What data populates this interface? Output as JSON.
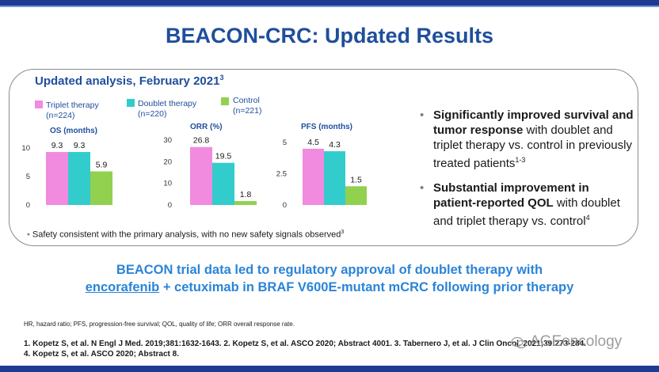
{
  "slide": {
    "title": "BEACON-CRC: Updated Results",
    "subtitle": "Updated analysis, February 2021",
    "subtitle_ref": "3"
  },
  "legend": [
    {
      "label": "Triplet therapy",
      "n": "(n=224)",
      "color": "#f08be0"
    },
    {
      "label": "Doublet therapy",
      "n": "(n=220)",
      "color": "#33cccc"
    },
    {
      "label": "Control",
      "n": "(n=221)",
      "color": "#92d050"
    }
  ],
  "chart_data": [
    {
      "type": "bar",
      "title": "OS (months)",
      "categories": [
        "Triplet therapy",
        "Doublet therapy",
        "Control"
      ],
      "values": [
        9.3,
        9.3,
        5.9
      ],
      "ylim": [
        0,
        10
      ],
      "yticks": [
        "0",
        "5",
        "10"
      ]
    },
    {
      "type": "bar",
      "title": "ORR (%)",
      "categories": [
        "Triplet therapy",
        "Doublet therapy",
        "Control"
      ],
      "values": [
        26.8,
        19.5,
        1.8
      ],
      "ylim": [
        0,
        30
      ],
      "yticks": [
        "0",
        "10",
        "20",
        "30"
      ]
    },
    {
      "type": "bar",
      "title": "PFS (months)",
      "categories": [
        "Triplet therapy",
        "Doublet therapy",
        "Control"
      ],
      "values": [
        4.5,
        4.3,
        1.5
      ],
      "ylim": [
        0,
        5
      ],
      "yticks": [
        "0",
        "2.5",
        "5"
      ]
    }
  ],
  "bullets": [
    {
      "bold1": "Significantly improved survival and ",
      "bold2": "tumor response",
      "rest": " with doublet and triplet therapy vs. control in previously treated patients",
      "ref": "1-3"
    },
    {
      "bold1": "Substantial improvement in patient-reported QOL",
      "bold2": "",
      "rest": " with doublet and triplet therapy vs. control",
      "ref": "4"
    }
  ],
  "safety": {
    "text": "Safety consistent with the primary analysis, with no new safety signals observed",
    "ref": "3"
  },
  "conclusion": {
    "line1": "BEACON trial data led to regulatory approval of doublet therapy with",
    "underlined": "encorafenib",
    "line2": " + cetuximab in BRAF V600E-mutant mCRC following prior therapy"
  },
  "abbreviations": "HR, hazard ratio; PFS, progression-free survival; QOL, quality of life; ORR overall response rate.",
  "references": {
    "line1": "1. Kopetz S, et al. N Engl J Med. 2019;381:1632-1643. 2. Kopetz S, et al. ASCO 2020; Abstract 4001. 3. Tabernero J, et al. J Clin Oncol. 2021;39:273-284.",
    "line2": "4. Kopetz S, et al. ASCO 2020; Abstract 8."
  },
  "watermark": "AGEoncology",
  "bullet_marker": "•"
}
